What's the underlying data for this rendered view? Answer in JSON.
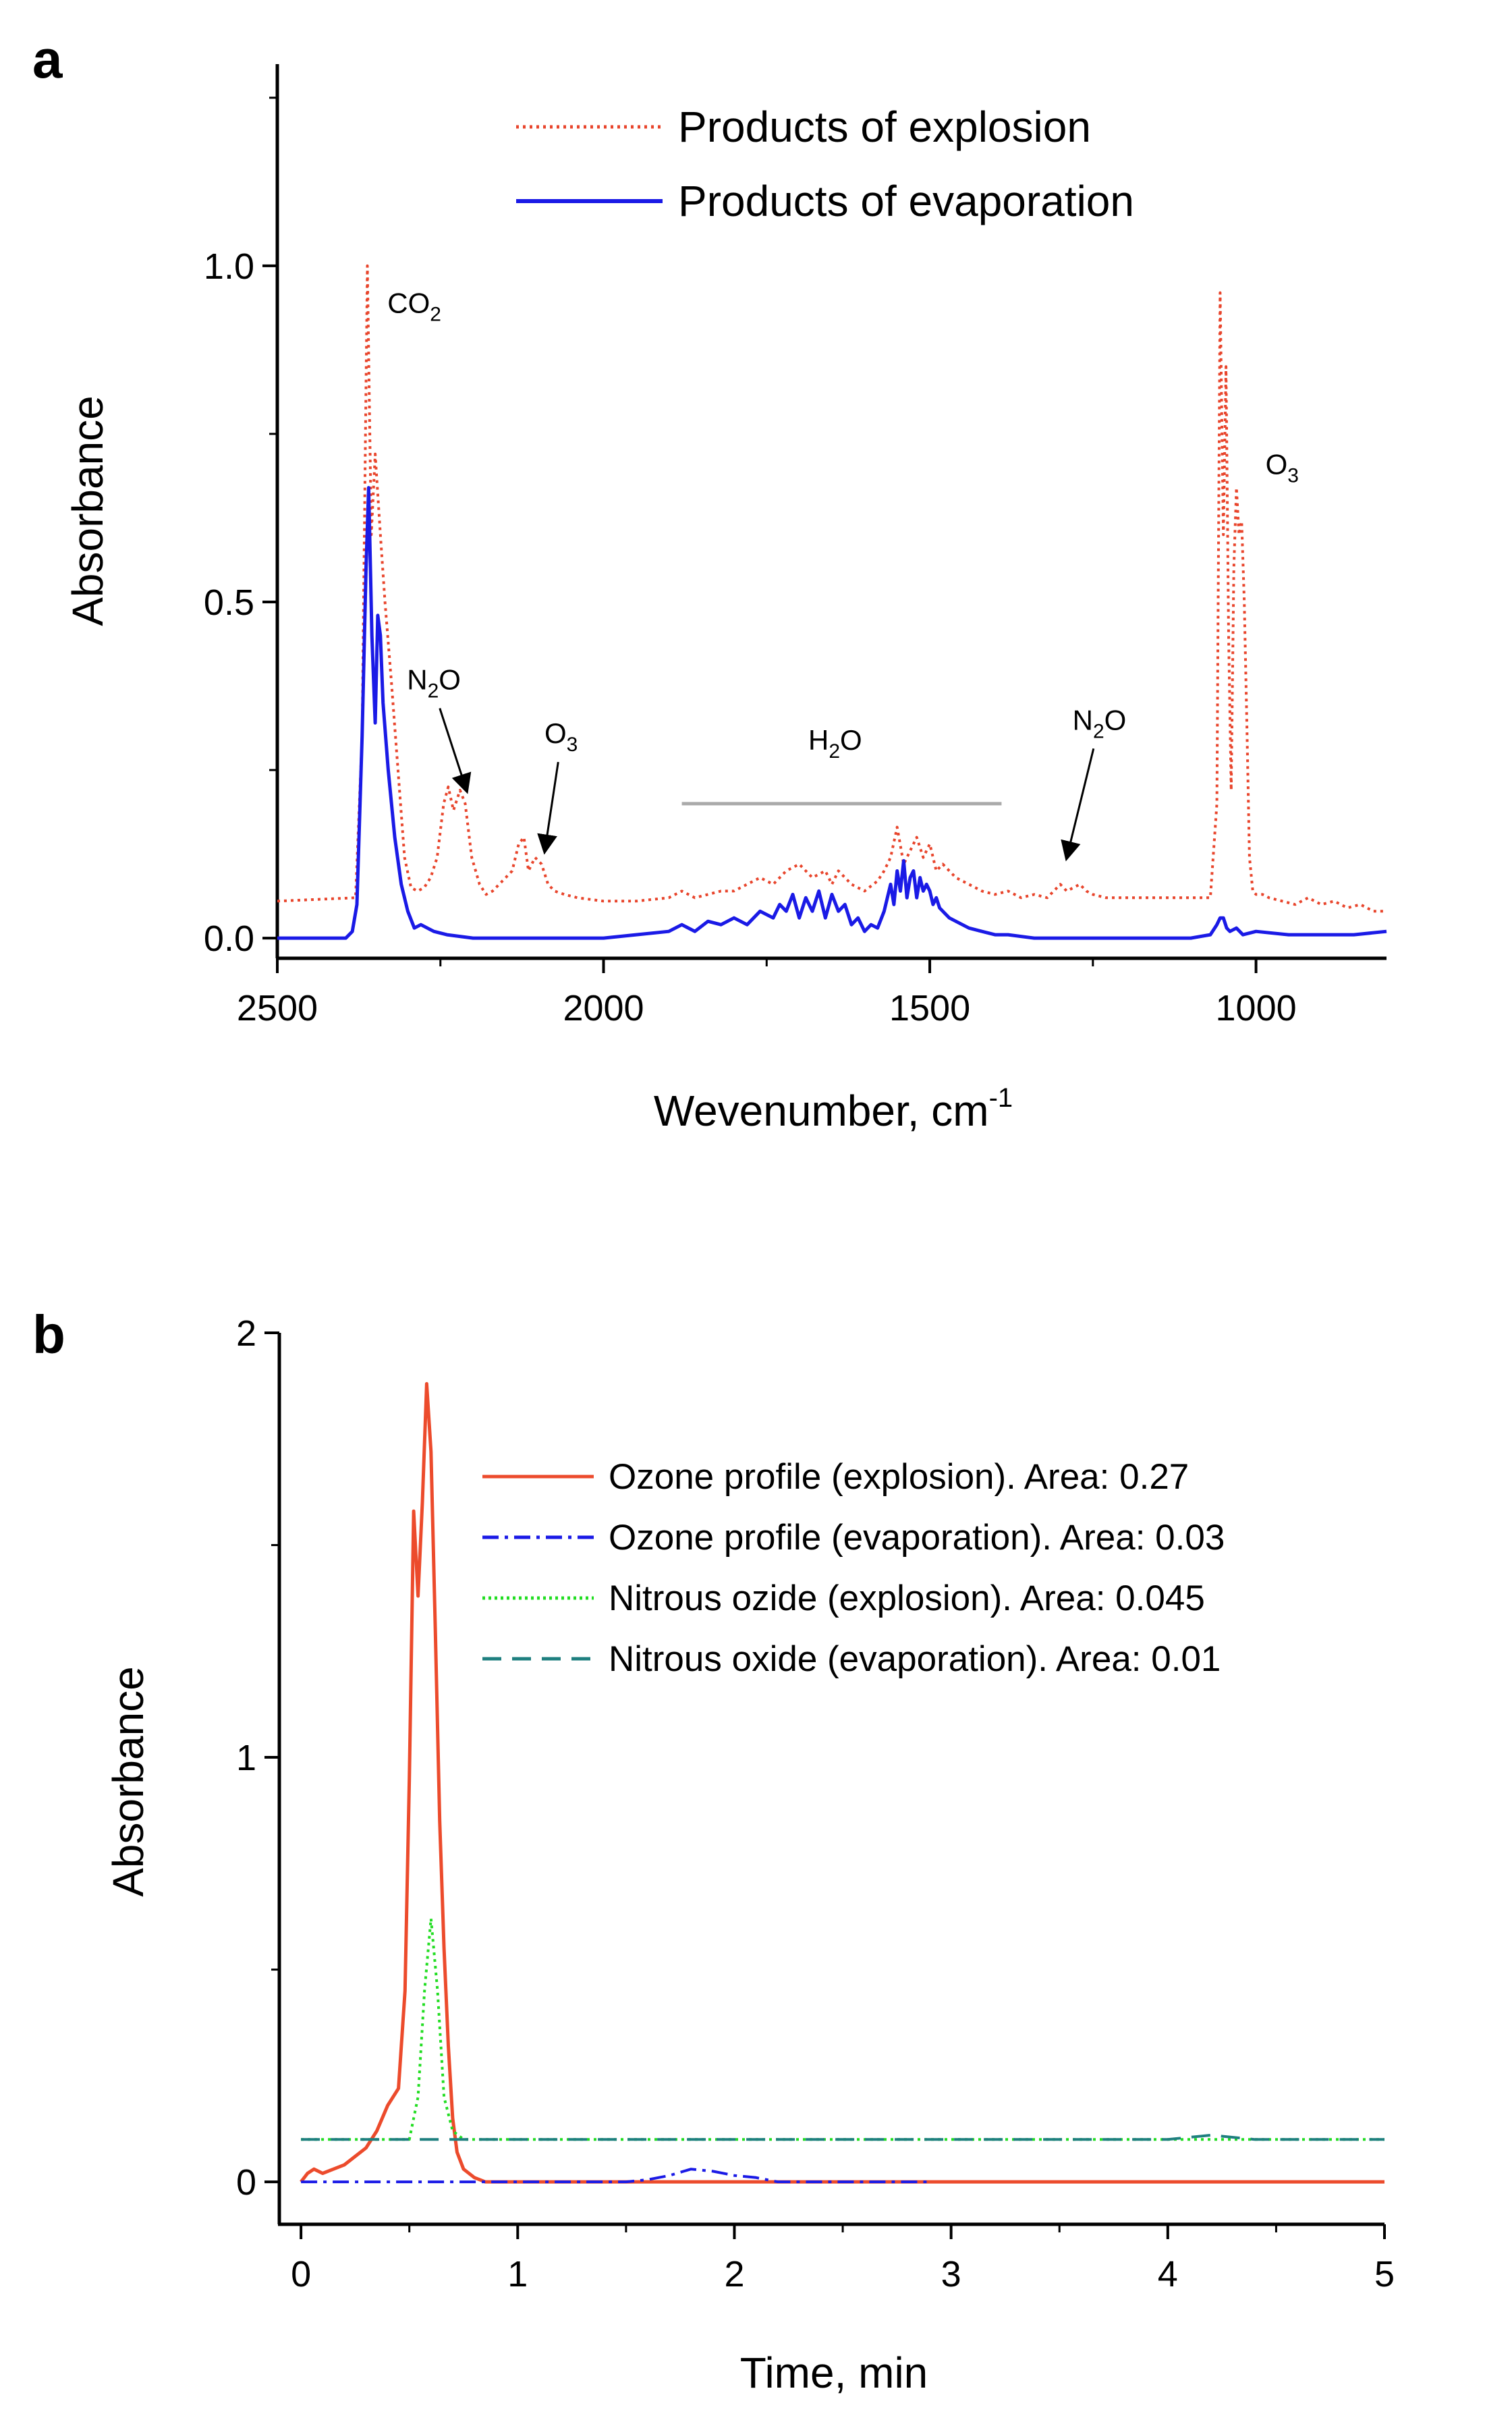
{
  "chart_data": [
    {
      "type": "line",
      "panel_label": "a",
      "xlabel": "Wevenumber, cm",
      "xlabel_sup": "-1",
      "ylabel": "Absorbance",
      "xlim": [
        2500,
        800
      ],
      "ylim": [
        -0.03,
        1.3
      ],
      "x_ticks": [
        2500,
        2000,
        1500,
        1000
      ],
      "x_tick_labels": [
        "2500",
        "2000",
        "1500",
        "1000"
      ],
      "y_ticks": [
        0.0,
        0.5,
        1.0
      ],
      "y_tick_labels": [
        "0.0",
        "0.5",
        "1.0"
      ],
      "legend_position": "top-right",
      "series": [
        {
          "name": "Products of explosion",
          "color": "#e8452c",
          "style": "dotted",
          "x": [
            2500,
            2380,
            2370,
            2362,
            2356,
            2350,
            2342,
            2335,
            2325,
            2315,
            2305,
            2295,
            2285,
            2275,
            2265,
            2255,
            2245,
            2238,
            2230,
            2220,
            2212,
            2202,
            2190,
            2180,
            2170,
            2160,
            2150,
            2140,
            2130,
            2122,
            2115,
            2105,
            2095,
            2085,
            2075,
            2060,
            2040,
            2000,
            1950,
            1900,
            1880,
            1860,
            1840,
            1820,
            1800,
            1780,
            1760,
            1740,
            1720,
            1700,
            1680,
            1660,
            1650,
            1640,
            1620,
            1600,
            1580,
            1570,
            1560,
            1550,
            1540,
            1530,
            1520,
            1510,
            1500,
            1490,
            1480,
            1460,
            1440,
            1420,
            1400,
            1380,
            1360,
            1340,
            1320,
            1300,
            1290,
            1280,
            1270,
            1260,
            1250,
            1230,
            1200,
            1150,
            1100,
            1070,
            1060,
            1055,
            1050,
            1046,
            1042,
            1038,
            1034,
            1030,
            1026,
            1022,
            1018,
            1014,
            1010,
            1005,
            1000,
            990,
            980,
            960,
            940,
            920,
            900,
            880,
            860,
            840,
            820,
            800
          ],
          "values": [
            0.055,
            0.06,
            0.3,
            1.0,
            0.6,
            0.72,
            0.6,
            0.5,
            0.38,
            0.25,
            0.12,
            0.075,
            0.07,
            0.075,
            0.09,
            0.12,
            0.2,
            0.225,
            0.19,
            0.22,
            0.2,
            0.12,
            0.08,
            0.065,
            0.07,
            0.08,
            0.09,
            0.1,
            0.14,
            0.15,
            0.1,
            0.12,
            0.11,
            0.08,
            0.07,
            0.065,
            0.06,
            0.055,
            0.055,
            0.06,
            0.07,
            0.06,
            0.065,
            0.07,
            0.07,
            0.08,
            0.09,
            0.08,
            0.1,
            0.11,
            0.09,
            0.1,
            0.08,
            0.1,
            0.08,
            0.07,
            0.085,
            0.1,
            0.12,
            0.165,
            0.11,
            0.13,
            0.15,
            0.12,
            0.14,
            0.1,
            0.11,
            0.09,
            0.08,
            0.07,
            0.065,
            0.07,
            0.06,
            0.065,
            0.06,
            0.08,
            0.07,
            0.075,
            0.08,
            0.07,
            0.065,
            0.06,
            0.06,
            0.06,
            0.06,
            0.06,
            0.2,
            0.96,
            0.6,
            0.85,
            0.45,
            0.22,
            0.55,
            0.67,
            0.6,
            0.62,
            0.5,
            0.32,
            0.12,
            0.07,
            0.065,
            0.065,
            0.06,
            0.055,
            0.05,
            0.06,
            0.05,
            0.055,
            0.045,
            0.05,
            0.04,
            0.04
          ]
        },
        {
          "name": "Products of evaporation",
          "color": "#1a1ae6",
          "style": "solid",
          "x": [
            2500,
            2410,
            2395,
            2385,
            2378,
            2370,
            2364,
            2360,
            2355,
            2350,
            2346,
            2342,
            2338,
            2330,
            2320,
            2310,
            2300,
            2290,
            2280,
            2270,
            2260,
            2240,
            2200,
            2100,
            2000,
            1950,
            1900,
            1880,
            1860,
            1840,
            1820,
            1800,
            1780,
            1760,
            1740,
            1730,
            1720,
            1710,
            1700,
            1690,
            1680,
            1670,
            1660,
            1650,
            1640,
            1630,
            1620,
            1610,
            1600,
            1590,
            1580,
            1570,
            1565,
            1560,
            1555,
            1550,
            1545,
            1540,
            1535,
            1530,
            1525,
            1520,
            1515,
            1510,
            1505,
            1500,
            1495,
            1490,
            1485,
            1480,
            1470,
            1460,
            1450,
            1440,
            1420,
            1400,
            1380,
            1340,
            1300,
            1200,
            1100,
            1070,
            1060,
            1055,
            1050,
            1045,
            1040,
            1030,
            1020,
            1000,
            950,
            900,
            850,
            800
          ],
          "values": [
            0.0,
            0.0,
            0.0,
            0.01,
            0.05,
            0.3,
            0.55,
            0.67,
            0.45,
            0.32,
            0.48,
            0.45,
            0.35,
            0.25,
            0.15,
            0.08,
            0.04,
            0.015,
            0.02,
            0.015,
            0.01,
            0.005,
            0.0,
            0.0,
            0.0,
            0.005,
            0.01,
            0.02,
            0.01,
            0.025,
            0.02,
            0.03,
            0.02,
            0.04,
            0.03,
            0.05,
            0.04,
            0.065,
            0.03,
            0.06,
            0.04,
            0.07,
            0.03,
            0.065,
            0.04,
            0.05,
            0.02,
            0.03,
            0.01,
            0.02,
            0.015,
            0.04,
            0.06,
            0.08,
            0.05,
            0.1,
            0.07,
            0.115,
            0.06,
            0.09,
            0.1,
            0.06,
            0.09,
            0.07,
            0.08,
            0.07,
            0.05,
            0.06,
            0.045,
            0.04,
            0.03,
            0.025,
            0.02,
            0.015,
            0.01,
            0.005,
            0.005,
            0.0,
            0.0,
            0.0,
            0.0,
            0.005,
            0.02,
            0.03,
            0.03,
            0.015,
            0.01,
            0.015,
            0.005,
            0.01,
            0.005,
            0.005,
            0.005,
            0.01
          ]
        }
      ],
      "annotations": [
        {
          "text": "CO",
          "sub": "2",
          "x": 2290,
          "y": 0.93
        },
        {
          "text": "N",
          "sub": "2",
          "tail": "O",
          "x": 2260,
          "y": 0.37,
          "arrow_to": [
            2210,
            0.22
          ]
        },
        {
          "text": "O",
          "sub": "3",
          "x": 2065,
          "y": 0.29,
          "arrow_to": [
            2090,
            0.13
          ]
        },
        {
          "text": "H",
          "sub": "2",
          "tail": "O",
          "x": 1645,
          "y": 0.28
        },
        {
          "text": "N",
          "sub": "2",
          "tail": "O",
          "x": 1240,
          "y": 0.31,
          "arrow_to": [
            1290,
            0.12
          ]
        },
        {
          "text": "O",
          "sub": "3",
          "x": 960,
          "y": 0.69
        }
      ],
      "reference_line": {
        "from": 1880,
        "to": 1390,
        "y": 0.2,
        "color": "#aaaaaa"
      }
    },
    {
      "type": "line",
      "panel_label": "b",
      "xlabel": "Time, min",
      "ylabel": "Absorbance",
      "xlim": [
        -0.1,
        5.0
      ],
      "ylim": [
        -0.1,
        2.0
      ],
      "x_ticks": [
        0,
        1,
        2,
        3,
        4,
        5
      ],
      "x_tick_labels": [
        "0",
        "1",
        "2",
        "3",
        "4",
        "5"
      ],
      "y_ticks": [
        0,
        1,
        2
      ],
      "y_tick_labels": [
        "0",
        "1",
        "2"
      ],
      "legend_position": "top-right",
      "series": [
        {
          "name": "Ozone profile (explosion). Area: 0.27",
          "color": "#ec4b2c",
          "style": "solid",
          "x": [
            0.0,
            0.03,
            0.06,
            0.1,
            0.15,
            0.2,
            0.25,
            0.3,
            0.35,
            0.4,
            0.45,
            0.48,
            0.5,
            0.52,
            0.54,
            0.56,
            0.58,
            0.6,
            0.62,
            0.64,
            0.66,
            0.68,
            0.7,
            0.72,
            0.75,
            0.8,
            0.85,
            0.9,
            1.0,
            2.0,
            3.0,
            4.0,
            5.0
          ],
          "values": [
            0.0,
            0.02,
            0.03,
            0.02,
            0.03,
            0.04,
            0.06,
            0.08,
            0.12,
            0.18,
            0.22,
            0.45,
            0.95,
            1.58,
            1.38,
            1.6,
            1.88,
            1.72,
            1.3,
            0.85,
            0.55,
            0.32,
            0.15,
            0.07,
            0.03,
            0.01,
            0.0,
            0.0,
            0.0,
            0.0,
            0.0,
            0.0,
            0.0
          ]
        },
        {
          "name": "Ozone profile (evaporation). Area: 0.03",
          "color": "#1a1ae6",
          "style": "dashdot",
          "x": [
            0.0,
            0.5,
            1.0,
            1.5,
            1.6,
            1.7,
            1.8,
            1.9,
            2.0,
            2.1,
            2.2,
            2.3,
            2.5,
            2.7,
            2.9
          ],
          "values": [
            0.0,
            0.0,
            0.0,
            0.0,
            0.005,
            0.015,
            0.03,
            0.025,
            0.015,
            0.01,
            0.0,
            0.0,
            0.0,
            0.0,
            0.0
          ]
        },
        {
          "name": "Nitrous ozide (explosion). Area: 0.045",
          "color": "#22dd22",
          "style": "dotted",
          "x": [
            0.0,
            0.2,
            0.4,
            0.5,
            0.54,
            0.57,
            0.6,
            0.63,
            0.66,
            0.7,
            0.75,
            0.9,
            1.5,
            2.0,
            3.0,
            4.0,
            4.5,
            5.0
          ],
          "values": [
            0.1,
            0.1,
            0.1,
            0.1,
            0.2,
            0.45,
            0.62,
            0.45,
            0.2,
            0.12,
            0.1,
            0.1,
            0.1,
            0.1,
            0.1,
            0.1,
            0.1,
            0.1
          ]
        },
        {
          "name": "Nitrous oxide (evaporation). Area: 0.01",
          "color": "#1e7f7f",
          "style": "dashed",
          "x": [
            0.0,
            1.0,
            1.5,
            2.0,
            2.5,
            3.0,
            3.5,
            3.8,
            4.0,
            4.2,
            4.4,
            4.6,
            5.0
          ],
          "values": [
            0.1,
            0.1,
            0.1,
            0.1,
            0.1,
            0.1,
            0.1,
            0.1,
            0.1,
            0.11,
            0.1,
            0.1,
            0.1
          ]
        }
      ]
    }
  ]
}
